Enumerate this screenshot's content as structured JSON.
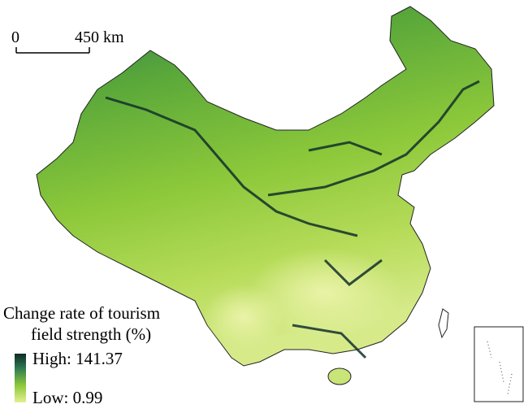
{
  "scale_bar": {
    "start": "0",
    "end": "450 km"
  },
  "legend": {
    "title_lines": [
      "Change rate of tourism",
      "field strength (%)"
    ],
    "high": "High: 141.37",
    "low": "Low: 0.99"
  }
}
